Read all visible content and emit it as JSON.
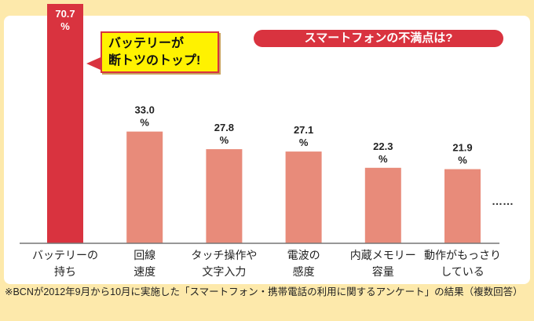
{
  "chart_data": {
    "type": "bar",
    "title": "スマートフォンの不満点は?",
    "categories": [
      [
        "バッテリーの",
        "持ち"
      ],
      [
        "回線",
        "速度"
      ],
      [
        "タッチ操作や",
        "文字入力"
      ],
      [
        "電波の",
        "感度"
      ],
      [
        "内蔵メモリー",
        "容量"
      ],
      [
        "動作がもっさり",
        "している"
      ]
    ],
    "values": [
      70.7,
      33.0,
      27.8,
      27.1,
      22.3,
      21.9
    ],
    "value_labels": [
      "70.7",
      "33.0",
      "27.8",
      "27.1",
      "22.3",
      "21.9"
    ],
    "unit": "%",
    "ylim": [
      0,
      70.7
    ],
    "grid": false,
    "highlight_color": "#d9333f",
    "bar_color": "#e88b7a",
    "annotation": [
      "バッテリーが",
      "断トツのトップ!"
    ],
    "continuation": "……"
  },
  "footnote": "※BCNが2012年9月から10月に実施した「スマートフォン・携帯電話の利用に関するアンケート」の結果（複数回答）"
}
